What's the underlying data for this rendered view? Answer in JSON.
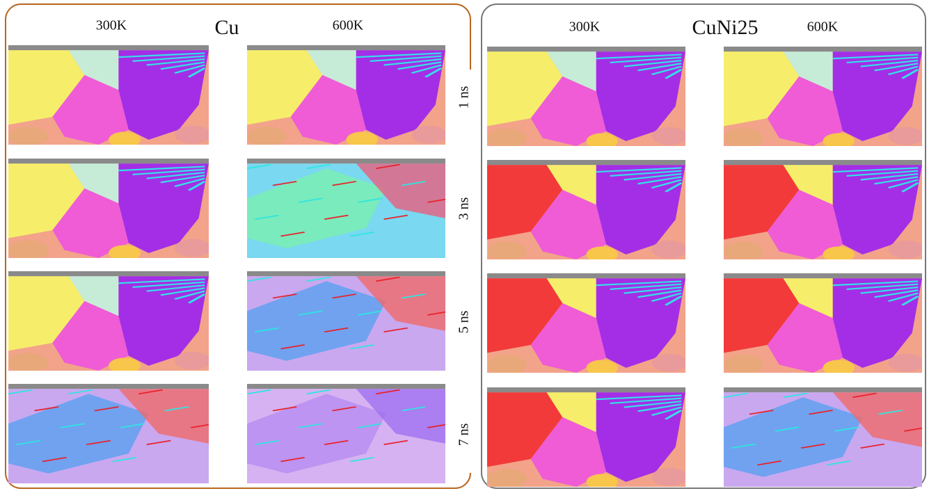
{
  "panels": [
    {
      "title": "Cu",
      "columns": [
        "300K",
        "600K"
      ]
    },
    {
      "title": "CuNi25",
      "columns": [
        "300K",
        "600K"
      ]
    }
  ],
  "rows": [
    "1 ns",
    "3 ns",
    "5 ns",
    "7 ns"
  ]
}
